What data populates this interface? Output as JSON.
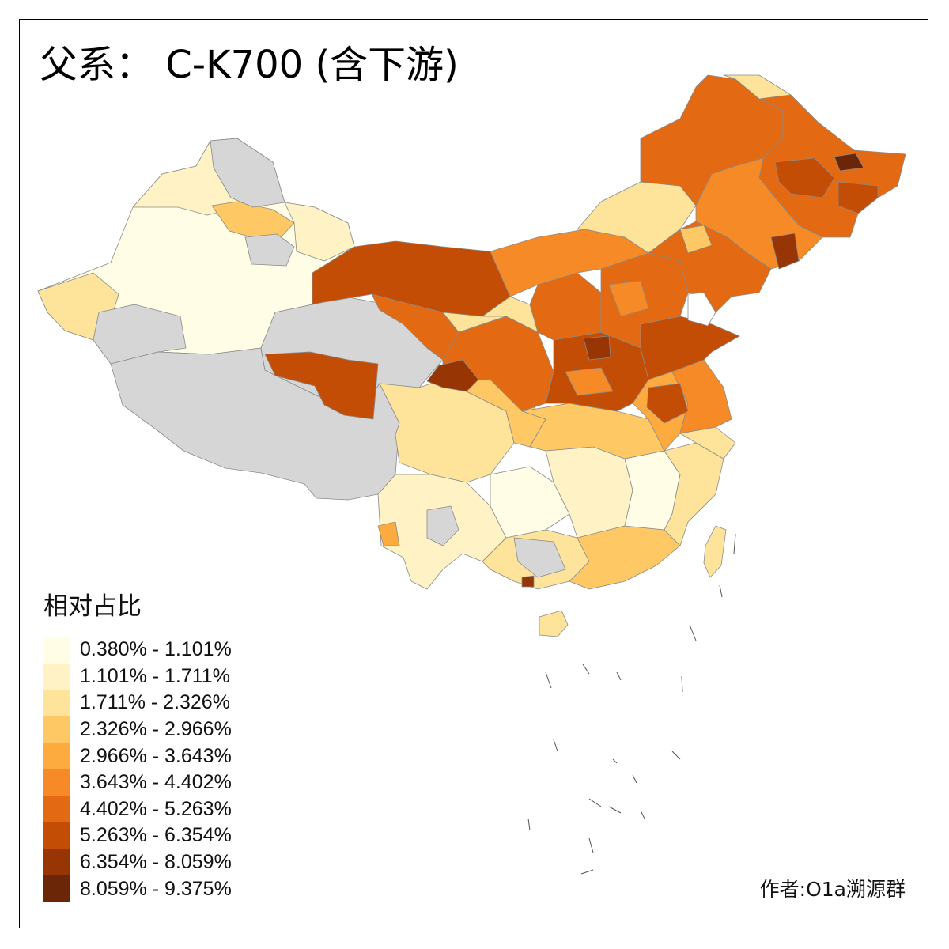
{
  "title": "父系： C-K700 (含下游)",
  "legend": {
    "title": "相对占比",
    "items": [
      {
        "label": "0.380% - 1.101%",
        "color": "#fffde6"
      },
      {
        "label": "1.101% - 1.711%",
        "color": "#fff2c4"
      },
      {
        "label": "1.711% - 2.326%",
        "color": "#fee39b"
      },
      {
        "label": "2.326% - 2.966%",
        "color": "#fec964"
      },
      {
        "label": "2.966% - 3.643%",
        "color": "#fdaa3f"
      },
      {
        "label": "3.643% - 4.402%",
        "color": "#f58a27"
      },
      {
        "label": "4.402% - 5.263%",
        "color": "#e36a12"
      },
      {
        "label": "5.263% - 6.354%",
        "color": "#c44d05"
      },
      {
        "label": "6.354% - 8.059%",
        "color": "#983505"
      },
      {
        "label": "8.059% - 9.375%",
        "color": "#6b2608"
      }
    ],
    "no_data_color": "#d6d6d6"
  },
  "credit": "作者:O1a溯源群"
}
